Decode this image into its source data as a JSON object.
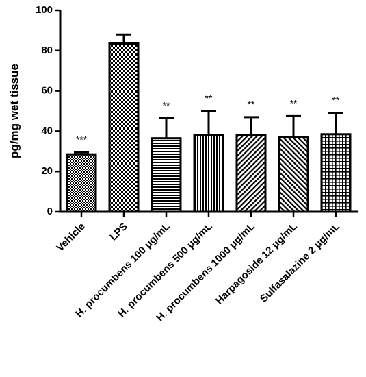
{
  "chart_data": {
    "type": "bar",
    "ylabel": "pg/mg wet tissue",
    "xlabel": "",
    "ylim": [
      0,
      100
    ],
    "yticks": [
      0,
      20,
      40,
      60,
      80,
      100
    ],
    "grid": false,
    "categories": [
      "Vehicle",
      "LPS",
      "H. procumbens 100 μg/mL",
      "H. procumbens 500 μg/mL",
      "H. procumbens 1000 μg/mL",
      "Harpagoside 12 μg/mL",
      "Sulfasalazine 2 μg/mL"
    ],
    "values": [
      28.5,
      83.5,
      36.5,
      38,
      38,
      37,
      38.5
    ],
    "error_upper": [
      1,
      4.5,
      10,
      12,
      9,
      10.5,
      10.5
    ],
    "significance": [
      "***",
      "",
      "**",
      "**",
      "**",
      "**",
      "**"
    ],
    "patterns": [
      "checker-small",
      "checker-large",
      "horizontal",
      "vertical",
      "diagonal-right",
      "diagonal-left",
      "grid"
    ],
    "bar_color": "#000000",
    "background": "#ffffff"
  }
}
